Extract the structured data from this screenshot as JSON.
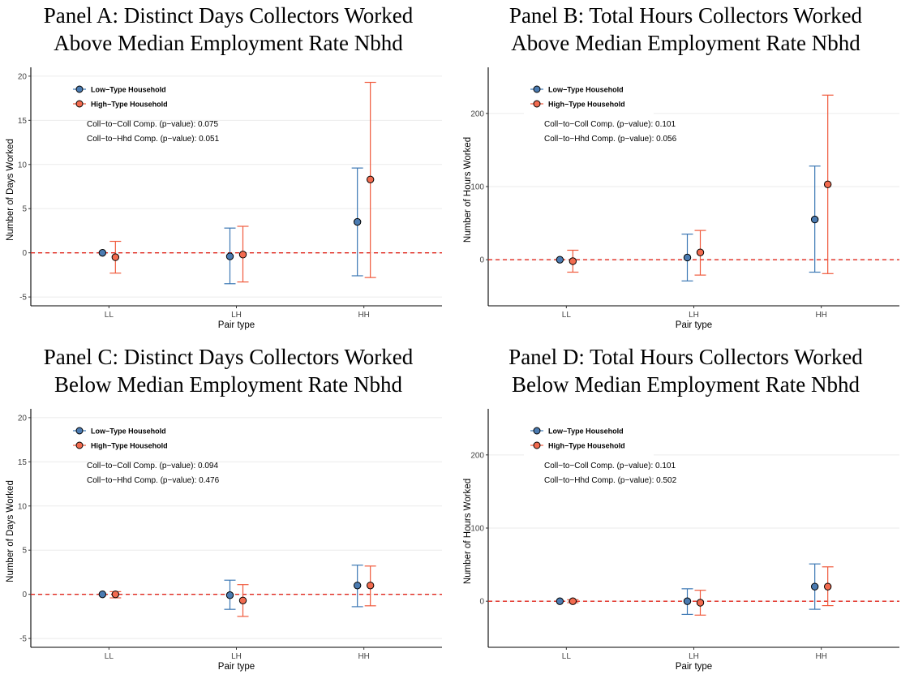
{
  "legend": {
    "low": "Low−Type Household",
    "high": "High−Type Household"
  },
  "colors": {
    "low": "#3c78b4",
    "low_fill": "#4b7bb1",
    "high": "#f05a3c",
    "high_fill": "#f26b4f",
    "zero_line": "#e0251b",
    "grid": "#ebebeb"
  },
  "chart_data": [
    {
      "id": "A",
      "type": "scatter",
      "title_lines": [
        "Panel A: Distinct Days Collectors Worked",
        "Above Median Employment Rate Nbhd"
      ],
      "xlabel": "Pair type",
      "ylabel": "Number of Days Worked",
      "categories": [
        "LL",
        "LH",
        "HH"
      ],
      "yticks": [
        -5,
        0,
        5,
        10,
        15,
        20
      ],
      "ylim": [
        -6,
        21
      ],
      "annotations": [
        "Coll−to−Coll Comp. (p−value): 0.075",
        "Coll−to−Hhd Comp. (p−value): 0.051"
      ],
      "series": [
        {
          "name": "Low−Type Household",
          "values": [
            0.0,
            -0.4,
            3.5
          ],
          "lower": [
            0.0,
            -3.5,
            -2.6
          ],
          "upper": [
            0.0,
            2.8,
            9.6
          ]
        },
        {
          "name": "High−Type Household",
          "values": [
            -0.5,
            -0.2,
            8.3
          ],
          "lower": [
            -2.3,
            -3.3,
            -2.8
          ],
          "upper": [
            1.3,
            3.0,
            19.3
          ]
        }
      ]
    },
    {
      "id": "B",
      "type": "scatter",
      "title_lines": [
        "Panel B: Total Hours Collectors Worked",
        "Above Median Employment Rate Nbhd"
      ],
      "xlabel": "Pair type",
      "ylabel": "Number of Hours Worked",
      "categories": [
        "LL",
        "LH",
        "HH"
      ],
      "yticks": [
        0,
        100,
        200
      ],
      "ylim": [
        -63,
        263
      ],
      "annotations": [
        "Coll−to−Coll Comp. (p−value): 0.101",
        "Coll−to−Hhd Comp. (p−value): 0.056"
      ],
      "series": [
        {
          "name": "Low−Type Household",
          "values": [
            0.0,
            3.0,
            55.0
          ],
          "lower": [
            0.0,
            -29.0,
            -17.0
          ],
          "upper": [
            0.0,
            35.0,
            128.0
          ]
        },
        {
          "name": "High−Type Household",
          "values": [
            -2.0,
            10.0,
            103.0
          ],
          "lower": [
            -17.0,
            -21.0,
            -19.0
          ],
          "upper": [
            13.0,
            40.0,
            225.0
          ]
        }
      ]
    },
    {
      "id": "C",
      "type": "scatter",
      "title_lines": [
        "Panel C: Distinct Days Collectors Worked",
        "Below Median Employment Rate Nbhd"
      ],
      "xlabel": "Pair type",
      "ylabel": "Number of Days Worked",
      "categories": [
        "LL",
        "LH",
        "HH"
      ],
      "yticks": [
        -5,
        0,
        5,
        10,
        15,
        20
      ],
      "ylim": [
        -6,
        21
      ],
      "annotations": [
        "Coll−to−Coll Comp. (p−value): 0.094",
        "Coll−to−Hhd Comp. (p−value): 0.476"
      ],
      "series": [
        {
          "name": "Low−Type Household",
          "values": [
            0.0,
            -0.1,
            1.0
          ],
          "lower": [
            0.0,
            -1.7,
            -1.4
          ],
          "upper": [
            0.0,
            1.6,
            3.3
          ]
        },
        {
          "name": "High−Type Household",
          "values": [
            0.0,
            -0.7,
            1.0
          ],
          "lower": [
            -0.4,
            -2.5,
            -1.3
          ],
          "upper": [
            0.3,
            1.1,
            3.2
          ]
        }
      ]
    },
    {
      "id": "D",
      "type": "scatter",
      "title_lines": [
        "Panel D: Total Hours Collectors Worked",
        "Below Median Employment Rate Nbhd"
      ],
      "xlabel": "Pair type",
      "ylabel": "Number of Hours Worked",
      "categories": [
        "LL",
        "LH",
        "HH"
      ],
      "yticks": [
        0,
        100,
        200
      ],
      "ylim": [
        -63,
        263
      ],
      "annotations": [
        "Coll−to−Coll Comp. (p−value): 0.101",
        "Coll−to−Hhd Comp. (p−value): 0.502"
      ],
      "series": [
        {
          "name": "Low−Type Household",
          "values": [
            0.0,
            0.0,
            20.0
          ],
          "lower": [
            0.0,
            -18.0,
            -11.0
          ],
          "upper": [
            0.0,
            17.0,
            51.0
          ]
        },
        {
          "name": "High−Type Household",
          "values": [
            0.0,
            -2.0,
            20.0
          ],
          "lower": [
            -2.0,
            -19.0,
            -6.0
          ],
          "upper": [
            2.0,
            15.0,
            47.0
          ]
        }
      ]
    }
  ]
}
